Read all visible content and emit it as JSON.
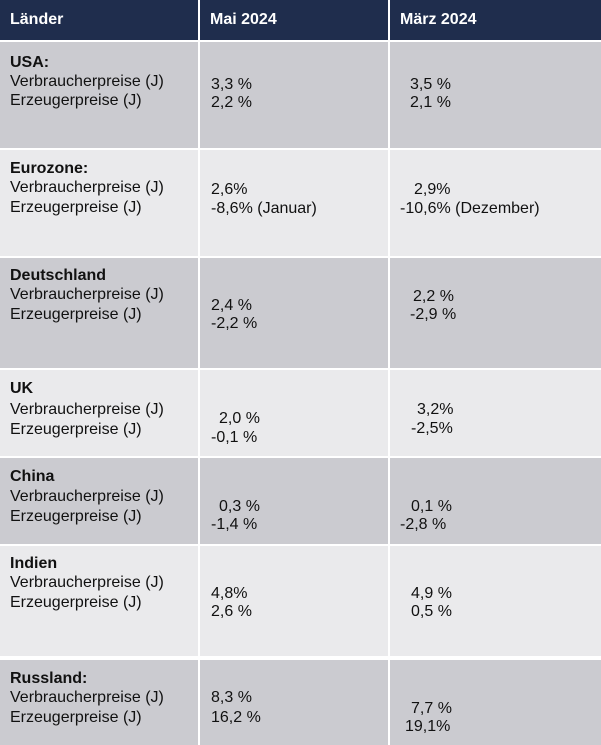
{
  "header": {
    "col1": "Länder",
    "col2": "Mai 2024",
    "col3": "März 2024"
  },
  "labels": {
    "cpi": "Verbraucherpreise (J)",
    "ppi": "Erzeugerpreise (J)"
  },
  "rows": [
    {
      "country": "USA:",
      "mai_cpi": "3,3 %",
      "mai_ppi": "2,2 %",
      "maerz_cpi": "3,5 %",
      "maerz_ppi": "2,1 %"
    },
    {
      "country": "Eurozone:",
      "mai_cpi": "2,6%",
      "mai_ppi": "-8,6% (Januar)",
      "maerz_cpi": "2,9%",
      "maerz_ppi": "-10,6% (Dezember)"
    },
    {
      "country": "Deutschland",
      "mai_cpi": "2,4 %",
      "mai_ppi": "-2,2 %",
      "maerz_cpi": "2,2 %",
      "maerz_ppi": "-2,9 %"
    },
    {
      "country": "UK",
      "mai_cpi": "2,0 %",
      "mai_ppi": "-0,1 %",
      "maerz_cpi": "3,2%",
      "maerz_ppi": "-2,5%"
    },
    {
      "country": "China",
      "mai_cpi": "0,3 %",
      "mai_ppi": "-1,4 %",
      "maerz_cpi": "0,1 %",
      "maerz_ppi": "-2,8 %"
    },
    {
      "country": "Indien",
      "mai_cpi": "4,8%",
      "mai_ppi": "2,6 %",
      "maerz_cpi": "4,9 %",
      "maerz_ppi": "0,5 %"
    },
    {
      "country": "Russland:",
      "mai_cpi": "8,3 %",
      "mai_ppi": "16,2 %",
      "maerz_cpi": "7,7 %",
      "maerz_ppi": "19,1%"
    }
  ],
  "colors": {
    "header_bg": "#1f2d4d",
    "row_dark": "#cbcbd0",
    "row_light": "#eaeaec"
  }
}
